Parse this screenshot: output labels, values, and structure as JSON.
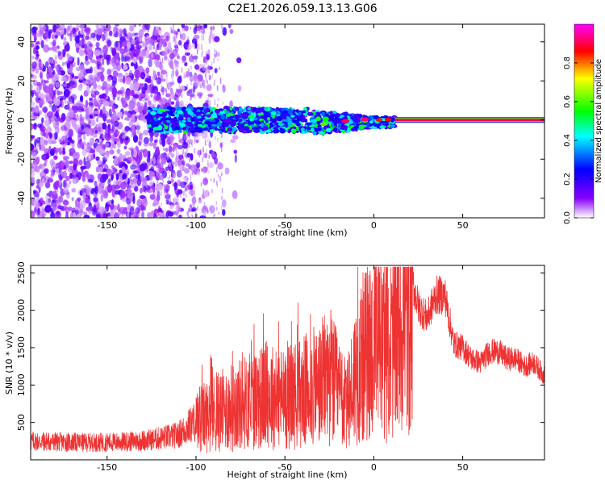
{
  "title": "C2E1.2026.059.13.13.G06",
  "colors": {
    "snr_line": "#ee3333",
    "background": "#ffffff"
  },
  "chart_data": [
    {
      "type": "heatmap",
      "title": "C2E1.2026.059.13.13.G06",
      "xlabel": "Height of straight line (km)",
      "ylabel": "Frequency (Hz)",
      "xlim": [
        -193,
        96
      ],
      "ylim": [
        -50,
        49
      ],
      "xticks": [
        -150,
        -100,
        -50,
        0,
        50
      ],
      "yticks": [
        -40,
        -20,
        0,
        20,
        40
      ],
      "colorbar": {
        "label": "Normalized spectral amplitude",
        "range": [
          0.0,
          1.0
        ],
        "ticks": [
          "0.0",
          "0.2",
          "0.4",
          "0.6",
          "0.8"
        ],
        "colormap": [
          "#ffffff",
          "#8800ff",
          "#0000ff",
          "#00ffff",
          "#00ff00",
          "#ffff00",
          "#ff0000",
          "#ff00ff"
        ]
      },
      "features": {
        "noise_region_x": [
          -193,
          -95
        ],
        "signal_band_start_x": -127,
        "signal_center_freq": 0,
        "strong_carrier_start_x": 12
      }
    },
    {
      "type": "line",
      "xlabel": "Height of straight line (km)",
      "ylabel": "SNR (10 * v/v)",
      "xlim": [
        -193,
        96
      ],
      "ylim": [
        0,
        2600
      ],
      "xticks": [
        -150,
        -100,
        -50,
        0,
        50
      ],
      "yticks": [
        500,
        1000,
        1500,
        2000,
        2500
      ],
      "series": [
        {
          "color": "#ee3333",
          "x": [
            -193,
            -180,
            -160,
            -140,
            -125,
            -110,
            -100,
            -90,
            -80,
            -70,
            -60,
            -50,
            -40,
            -30,
            -25,
            -20,
            -15,
            -10,
            -5,
            0,
            5,
            10,
            15,
            20,
            22,
            25,
            30,
            35,
            40,
            45,
            50,
            55,
            60,
            65,
            70,
            75,
            80,
            85,
            90,
            95
          ],
          "values": [
            250,
            240,
            230,
            240,
            270,
            330,
            520,
            620,
            700,
            780,
            860,
            820,
            900,
            1000,
            1150,
            900,
            700,
            1200,
            1400,
            1500,
            1450,
            1500,
            1800,
            2000,
            2350,
            2050,
            1900,
            2200,
            2200,
            1550,
            1500,
            1350,
            1300,
            1450,
            1450,
            1350,
            1350,
            1250,
            1300,
            1150
          ]
        }
      ]
    }
  ]
}
